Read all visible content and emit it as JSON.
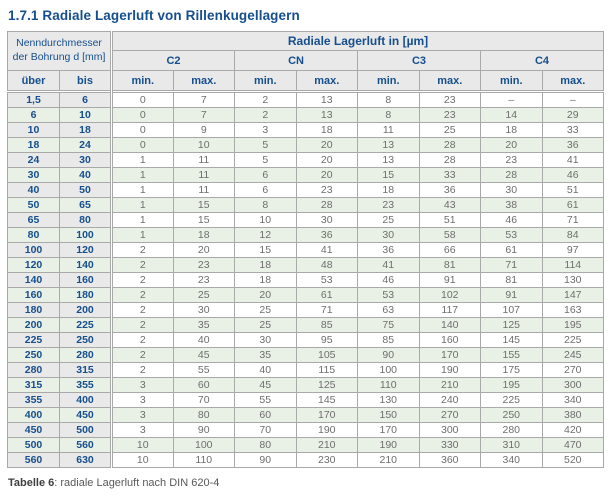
{
  "title": "1.7.1 Radiale Lagerluft von Rillenkugellagern",
  "table": {
    "diameter_header_line1": "Nenndurchmesser",
    "diameter_header_line2": "der Bohrung d [mm]",
    "clearance_header": "Radiale Lagerluft in [µm]",
    "groups": [
      "C2",
      "CN",
      "C3",
      "C4"
    ],
    "col_headers": {
      "ueber": "über",
      "bis": "bis",
      "min": "min.",
      "max": "max."
    },
    "rows": [
      [
        "1,5",
        "6",
        "0",
        "7",
        "2",
        "13",
        "8",
        "23",
        "–",
        "–"
      ],
      [
        "6",
        "10",
        "0",
        "7",
        "2",
        "13",
        "8",
        "23",
        "14",
        "29"
      ],
      [
        "10",
        "18",
        "0",
        "9",
        "3",
        "18",
        "11",
        "25",
        "18",
        "33"
      ],
      [
        "18",
        "24",
        "0",
        "10",
        "5",
        "20",
        "13",
        "28",
        "20",
        "36"
      ],
      [
        "24",
        "30",
        "1",
        "11",
        "5",
        "20",
        "13",
        "28",
        "23",
        "41"
      ],
      [
        "30",
        "40",
        "1",
        "11",
        "6",
        "20",
        "15",
        "33",
        "28",
        "46"
      ],
      [
        "40",
        "50",
        "1",
        "11",
        "6",
        "23",
        "18",
        "36",
        "30",
        "51"
      ],
      [
        "50",
        "65",
        "1",
        "15",
        "8",
        "28",
        "23",
        "43",
        "38",
        "61"
      ],
      [
        "65",
        "80",
        "1",
        "15",
        "10",
        "30",
        "25",
        "51",
        "46",
        "71"
      ],
      [
        "80",
        "100",
        "1",
        "18",
        "12",
        "36",
        "30",
        "58",
        "53",
        "84"
      ],
      [
        "100",
        "120",
        "2",
        "20",
        "15",
        "41",
        "36",
        "66",
        "61",
        "97"
      ],
      [
        "120",
        "140",
        "2",
        "23",
        "18",
        "48",
        "41",
        "81",
        "71",
        "114"
      ],
      [
        "140",
        "160",
        "2",
        "23",
        "18",
        "53",
        "46",
        "91",
        "81",
        "130"
      ],
      [
        "160",
        "180",
        "2",
        "25",
        "20",
        "61",
        "53",
        "102",
        "91",
        "147"
      ],
      [
        "180",
        "200",
        "2",
        "30",
        "25",
        "71",
        "63",
        "117",
        "107",
        "163"
      ],
      [
        "200",
        "225",
        "2",
        "35",
        "25",
        "85",
        "75",
        "140",
        "125",
        "195"
      ],
      [
        "225",
        "250",
        "2",
        "40",
        "30",
        "95",
        "85",
        "160",
        "145",
        "225"
      ],
      [
        "250",
        "280",
        "2",
        "45",
        "35",
        "105",
        "90",
        "170",
        "155",
        "245"
      ],
      [
        "280",
        "315",
        "2",
        "55",
        "40",
        "115",
        "100",
        "190",
        "175",
        "270"
      ],
      [
        "315",
        "355",
        "3",
        "60",
        "45",
        "125",
        "110",
        "210",
        "195",
        "300"
      ],
      [
        "355",
        "400",
        "3",
        "70",
        "55",
        "145",
        "130",
        "240",
        "225",
        "340"
      ],
      [
        "400",
        "450",
        "3",
        "80",
        "60",
        "170",
        "150",
        "270",
        "250",
        "380"
      ],
      [
        "450",
        "500",
        "3",
        "90",
        "70",
        "190",
        "170",
        "300",
        "280",
        "420"
      ],
      [
        "500",
        "560",
        "10",
        "100",
        "80",
        "210",
        "190",
        "330",
        "310",
        "470"
      ],
      [
        "560",
        "630",
        "10",
        "110",
        "90",
        "230",
        "210",
        "360",
        "340",
        "520"
      ]
    ]
  },
  "caption": {
    "label": "Tabelle 6",
    "rest": ": radiale Lagerluft nach DIN 620-4"
  },
  "colors": {
    "accent_blue": "#164f8e",
    "row_green": "#e9f1e6",
    "header_gray": "#e9e9e9",
    "border_gray": "#a9a9a9",
    "text_gray": "#6e6e6e",
    "caption_gray": "#595959"
  }
}
